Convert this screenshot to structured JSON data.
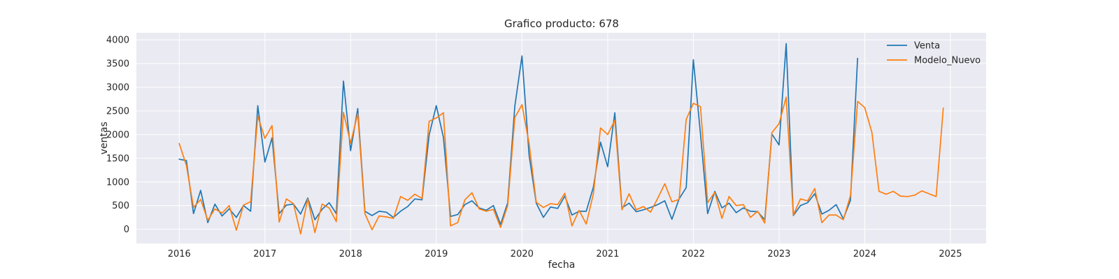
{
  "chart_data": {
    "type": "line",
    "title": "Grafico producto: 678",
    "xlabel": "fecha",
    "ylabel": "ventas",
    "xlim": [
      "2015-07-01",
      "2025-06-01"
    ],
    "ylim": [
      -300,
      4150
    ],
    "x_ticks": [
      "2016",
      "2017",
      "2018",
      "2019",
      "2020",
      "2021",
      "2022",
      "2023",
      "2024",
      "2025"
    ],
    "y_ticks": [
      "0",
      "500",
      "1000",
      "1500",
      "2000",
      "2500",
      "3000",
      "3500",
      "4000"
    ],
    "grid": true,
    "legend_position": "top-right",
    "start": "2016-01",
    "series": [
      {
        "name": "Venta",
        "color": "#1f77b4",
        "values": [
          1480,
          1450,
          330,
          820,
          140,
          530,
          280,
          430,
          250,
          500,
          380,
          2610,
          1420,
          1930,
          330,
          510,
          530,
          320,
          660,
          200,
          420,
          560,
          330,
          3130,
          1660,
          2550,
          380,
          290,
          380,
          360,
          250,
          380,
          480,
          640,
          620,
          1990,
          2610,
          1940,
          270,
          310,
          520,
          600,
          450,
          400,
          500,
          100,
          560,
          2600,
          3660,
          1560,
          550,
          250,
          470,
          440,
          700,
          300,
          380,
          380,
          890,
          1840,
          1320,
          2460,
          450,
          550,
          370,
          410,
          460,
          520,
          600,
          210,
          640,
          880,
          3580,
          2010,
          330,
          800,
          450,
          550,
          350,
          450,
          380,
          370,
          200,
          2010,
          1780,
          3920,
          290,
          500,
          560,
          750,
          320,
          400,
          520,
          220,
          610,
          3610
        ]
      },
      {
        "name": "Modelo_Nuevo",
        "color": "#ff7f0e",
        "values": [
          1810,
          1350,
          460,
          630,
          190,
          430,
          340,
          500,
          -20,
          510,
          580,
          2390,
          1920,
          2190,
          150,
          640,
          540,
          -100,
          640,
          -70,
          530,
          450,
          160,
          2470,
          1820,
          2440,
          330,
          -10,
          280,
          260,
          230,
          690,
          610,
          740,
          650,
          2280,
          2350,
          2460,
          70,
          140,
          620,
          770,
          430,
          380,
          420,
          40,
          500,
          2360,
          2630,
          1810,
          570,
          460,
          540,
          520,
          760,
          70,
          400,
          110,
          750,
          2140,
          2000,
          2300,
          410,
          750,
          410,
          480,
          360,
          650,
          960,
          580,
          630,
          2320,
          2660,
          2590,
          560,
          780,
          230,
          690,
          500,
          520,
          250,
          380,
          130,
          2040,
          2230,
          2790,
          300,
          640,
          600,
          860,
          140,
          300,
          300,
          200,
          710,
          2700,
          2570,
          2050,
          800,
          740,
          800,
          700,
          690,
          720,
          810,
          750,
          690,
          2560
        ]
      }
    ]
  }
}
